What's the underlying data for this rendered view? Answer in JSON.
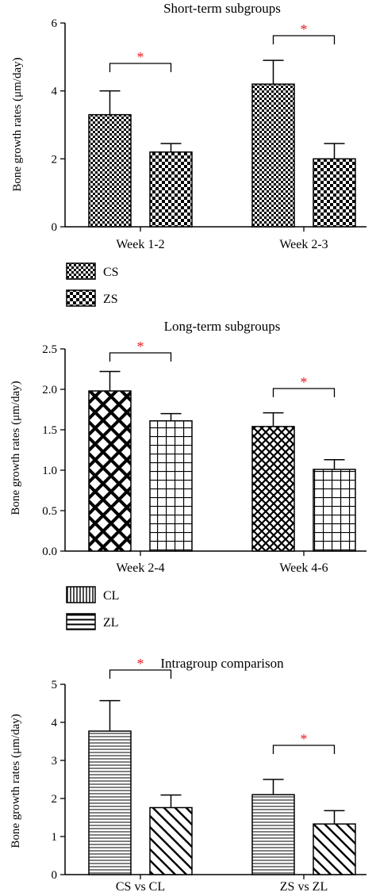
{
  "chart_data": [
    {
      "type": "bar",
      "title": "Short-term subgroups",
      "xlabel": "",
      "ylabel": "Bone growth rates (μm/day)",
      "ylim": [
        0,
        6
      ],
      "yticks": [
        "0",
        "2",
        "4",
        "6"
      ],
      "categories": [
        "Week 1-2",
        "Week 2-3"
      ],
      "series": [
        {
          "name": "CS",
          "values": [
            3.3,
            4.2
          ],
          "errors": [
            0.7,
            0.7
          ],
          "pattern": "checker-large"
        },
        {
          "name": "ZS",
          "values": [
            2.2,
            2.0
          ],
          "errors": [
            0.25,
            0.45
          ],
          "pattern": "checker-small"
        }
      ],
      "significance": [
        "*",
        "*"
      ],
      "legend": "below"
    },
    {
      "type": "bar",
      "title": "Long-term subgroups",
      "xlabel": "",
      "ylabel": "Bone growth rates (μm/day)",
      "ylim": [
        0,
        2.5
      ],
      "yticks": [
        "0.0",
        "0.5",
        "1.0",
        "1.5",
        "2.0",
        "2.5"
      ],
      "categories": [
        "Week 2-4",
        "Week 4-6"
      ],
      "bar_patterns": [
        [
          "diag-cross-bold",
          "grid"
        ],
        [
          "diag-cross-fine",
          "grid"
        ]
      ],
      "series": [
        {
          "name": "CL",
          "values": [
            1.98,
            1.54
          ],
          "errors": [
            0.24,
            0.17
          ],
          "pattern": "vertical-lines"
        },
        {
          "name": "ZL",
          "values": [
            1.61,
            1.01
          ],
          "errors": [
            0.09,
            0.12
          ],
          "pattern": "horizontal-lines"
        }
      ],
      "significance": [
        "*",
        "*"
      ],
      "legend": "below"
    },
    {
      "type": "bar",
      "title": "Intragroup comparison",
      "xlabel": "",
      "ylabel": "Bone growth rates (μm/day)",
      "ylim": [
        0,
        5
      ],
      "yticks": [
        "0",
        "1",
        "2",
        "3",
        "4",
        "5"
      ],
      "categories": [
        "CS vs CL",
        "ZS vs ZL"
      ],
      "series": [
        {
          "values": [
            3.77,
            2.1
          ],
          "errors": [
            0.8,
            0.4
          ],
          "pattern": "horizontal-fine"
        },
        {
          "values": [
            1.76,
            1.33
          ],
          "errors": [
            0.33,
            0.35
          ],
          "pattern": "diag-hatch"
        }
      ],
      "significance": [
        "*",
        "*"
      ]
    }
  ]
}
